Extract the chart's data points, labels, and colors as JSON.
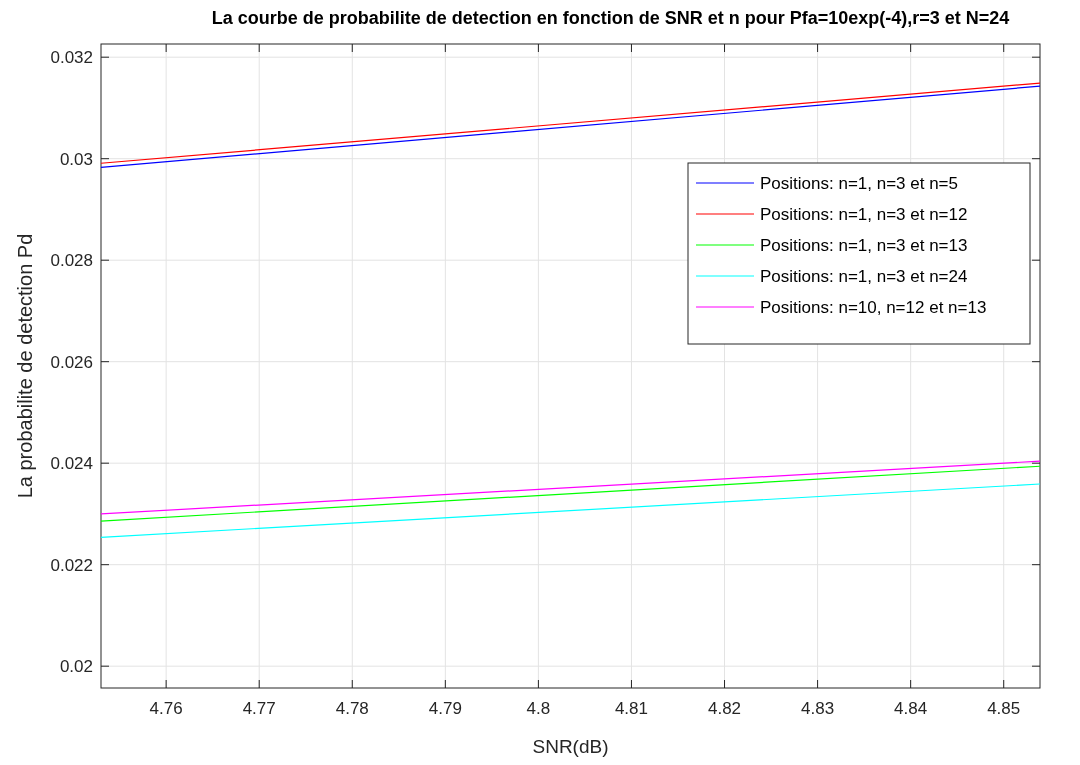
{
  "chart_data": {
    "type": "line",
    "title": "La courbe de probabilite de detection en fonction de SNR et n pour Pfa=10exp(-4),r=3 et N=24",
    "xlabel": "SNR(dB)",
    "ylabel": "La probabilite de detection Pd",
    "x": [
      4.753,
      4.8539
    ],
    "series": [
      {
        "name": "Positions: n=1, n=3 et n=5",
        "color": "#0000ff",
        "values": [
          0.02983,
          0.03143
        ]
      },
      {
        "name": "Positions: n=1, n=3 et n=12",
        "color": "#ff0000",
        "values": [
          0.02991,
          0.03149
        ]
      },
      {
        "name": "Positions: n=1, n=3 et n=13",
        "color": "#00ff00",
        "values": [
          0.02286,
          0.02394
        ]
      },
      {
        "name": "Positions: n=1, n=3 et n=24",
        "color": "#00ffff",
        "values": [
          0.02254,
          0.02359
        ]
      },
      {
        "name": "Positions: n=10, n=12 et n=13",
        "color": "#ff00ff",
        "values": [
          0.023,
          0.02404
        ]
      }
    ],
    "xlim": [
      4.753,
      4.8539
    ],
    "xticks": [
      4.76,
      4.77,
      4.78,
      4.79,
      4.8,
      4.81,
      4.82,
      4.83,
      4.84,
      4.85
    ],
    "ylim": [
      0.01957,
      0.03226
    ],
    "yticks": [
      0.02,
      0.022,
      0.024,
      0.026,
      0.028,
      0.03,
      0.032
    ],
    "grid": true,
    "legend": "top right",
    "line_style": "solid",
    "marker": "none"
  }
}
